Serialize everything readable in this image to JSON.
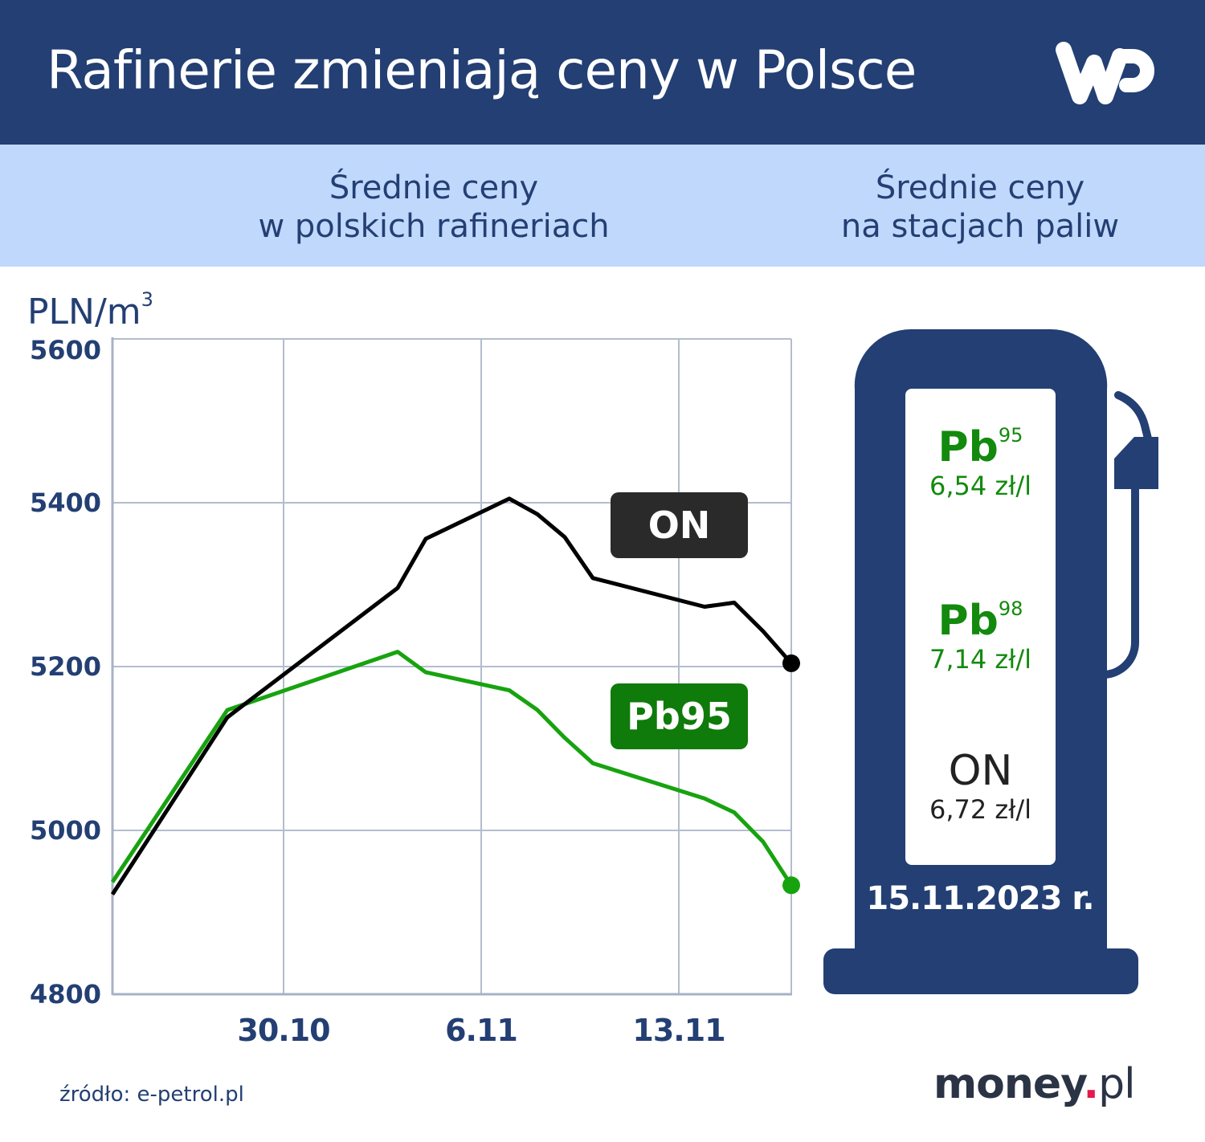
{
  "header": {
    "title": "Rafinerie zmieniają ceny w Polsce",
    "logo": "wp-logo",
    "bg_color": "#233f73"
  },
  "band": {
    "left_title": [
      "Średnie ceny",
      "w polskich rafineriach"
    ],
    "right_title": [
      "Średnie ceny",
      "na stacjach paliw"
    ],
    "bg_color": "#c0d8fc"
  },
  "chart_data": {
    "type": "line",
    "title": "Średnie ceny w polskich rafineriach",
    "xlabel": "",
    "ylabel": "PLN/m³",
    "ylim": [
      4800,
      5600
    ],
    "yticks": [
      4800,
      5000,
      5200,
      5400,
      5600
    ],
    "xtick_labels": [
      "30.10",
      "6.11",
      "13.11"
    ],
    "grid": true,
    "x": [
      "24.10",
      "28.10",
      "3.11",
      "4.11",
      "7.11",
      "8.11",
      "9.11",
      "10.11",
      "14.11",
      "15.11",
      "16.11",
      "17.11"
    ],
    "series": [
      {
        "name": "ON",
        "color": "#000000",
        "values": [
          4922,
          5138,
          5296,
          5356,
          5405,
          5386,
          5358,
          5308,
          5273,
          5278,
          5243,
          5204
        ]
      },
      {
        "name": "Pb95",
        "color": "#17a30f",
        "values": [
          4937,
          5147,
          5218,
          5193,
          5171,
          5147,
          5113,
          5082,
          5039,
          5022,
          4986,
          4933
        ]
      }
    ],
    "annotations": [
      {
        "label": "ON",
        "bg": "#2a2a2a"
      },
      {
        "label": "Pb95",
        "bg": "#0f7b0a"
      }
    ]
  },
  "axis": {
    "unit": "PLN/m",
    "unit_sup": "3",
    "y_labels": [
      "5600",
      "5400",
      "5200",
      "5000",
      "4800"
    ],
    "x_labels": [
      "30.10",
      "6.11",
      "13.11"
    ]
  },
  "tags": {
    "on": "ON",
    "pb95": "Pb95"
  },
  "pump": {
    "icon": "fuel-pump-icon",
    "color": "#233f73",
    "fuels": [
      {
        "name": "Pb",
        "sup": "95",
        "price": "6,54 zł/l",
        "color": "#138a0e"
      },
      {
        "name": "Pb",
        "sup": "98",
        "price": "7,14 zł/l",
        "color": "#138a0e"
      },
      {
        "name": "ON",
        "sup": "",
        "price": "6,72 zł/l",
        "color": "#222222"
      }
    ],
    "date": "15.11.2023 r."
  },
  "footer": {
    "source": "źródło: e-petrol.pl",
    "brand_main": "money",
    "brand_dot": ".",
    "brand_tld": "pl"
  }
}
